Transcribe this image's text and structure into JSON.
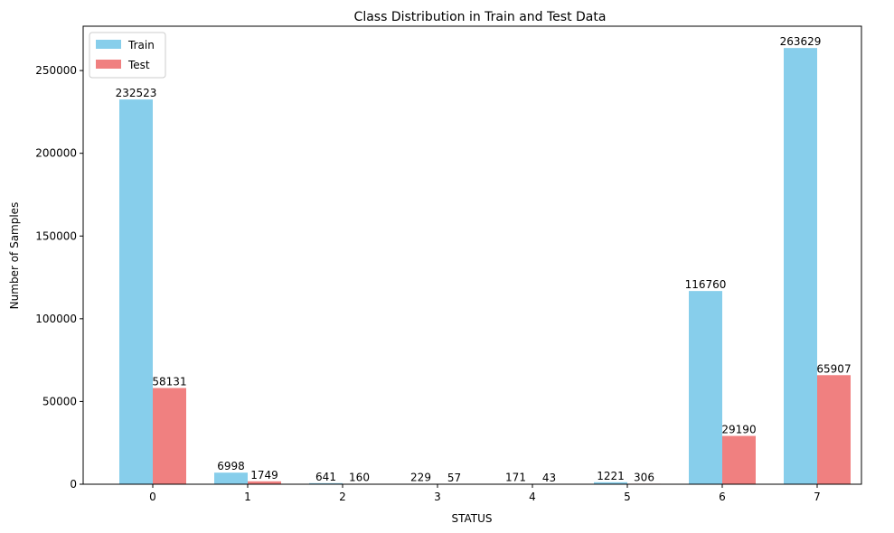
{
  "chart_data": {
    "type": "bar",
    "title": "Class Distribution in Train and Test Data",
    "xlabel": "STATUS",
    "ylabel": "Number of Samples",
    "categories": [
      "0",
      "1",
      "2",
      "3",
      "4",
      "5",
      "6",
      "7"
    ],
    "series": [
      {
        "name": "Train",
        "color": "#87CEEB",
        "values": [
          232523,
          6998,
          641,
          229,
          171,
          1221,
          116760,
          263629
        ]
      },
      {
        "name": "Test",
        "color": "#F08080",
        "values": [
          58131,
          1749,
          160,
          57,
          43,
          306,
          29190,
          65907
        ]
      }
    ],
    "data_labels": {
      "Train": [
        "232523",
        "6998",
        "641",
        "229",
        "171",
        "1221",
        "116760",
        "263629"
      ],
      "Test": [
        "58131",
        "1749",
        "160",
        "57",
        "43",
        "306",
        "29190",
        "65907"
      ]
    },
    "ylim": [
      0,
      276810
    ],
    "yticks": [
      0,
      50000,
      100000,
      150000,
      200000,
      250000
    ],
    "ytick_labels": [
      "0",
      "50000",
      "100000",
      "150000",
      "200000",
      "250000"
    ],
    "grid": false,
    "legend_position": "top-left"
  }
}
